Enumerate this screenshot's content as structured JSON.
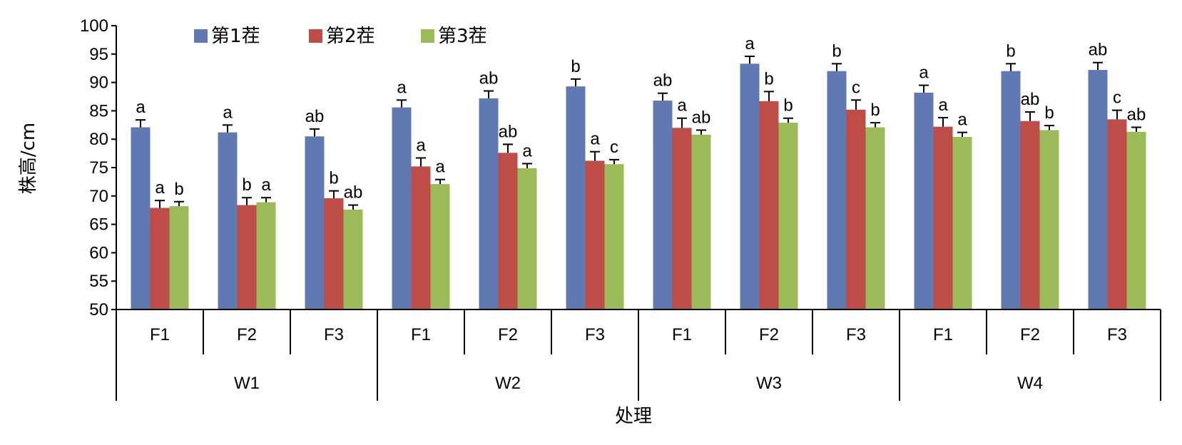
{
  "chart_data": {
    "type": "bar",
    "ylabel": "株高/cm",
    "xlabel": "处理",
    "ylim": [
      50,
      100
    ],
    "yticks": [
      50,
      55,
      60,
      65,
      70,
      75,
      80,
      85,
      90,
      95,
      100
    ],
    "legend_position": "top-left",
    "groups": [
      {
        "label": "W1",
        "categories": [
          "F1",
          "F2",
          "F3"
        ]
      },
      {
        "label": "W2",
        "categories": [
          "F1",
          "F2",
          "F3"
        ]
      },
      {
        "label": "W3",
        "categories": [
          "F1",
          "F2",
          "F3"
        ]
      },
      {
        "label": "W4",
        "categories": [
          "F1",
          "F2",
          "F3"
        ]
      }
    ],
    "series": [
      {
        "name": "第1茬",
        "color": "#6079B2",
        "values": [
          82.1,
          81.2,
          80.5,
          85.6,
          87.2,
          89.3,
          86.8,
          93.3,
          92.0,
          88.2,
          92.0,
          92.2
        ],
        "errors": [
          1.3,
          1.3,
          1.3,
          1.3,
          1.3,
          1.3,
          1.3,
          1.3,
          1.3,
          1.3,
          1.3,
          1.3
        ],
        "sig": [
          "a",
          "a",
          "ab",
          "a",
          "ab",
          "b",
          "ab",
          "a",
          "b",
          "a",
          "b",
          "ab"
        ]
      },
      {
        "name": "第2茬",
        "color": "#BE4D48",
        "values": [
          67.9,
          68.4,
          69.6,
          75.2,
          77.6,
          76.2,
          82.0,
          86.7,
          85.2,
          82.2,
          83.2,
          83.5
        ],
        "errors": [
          1.3,
          1.3,
          1.3,
          1.5,
          1.5,
          1.6,
          1.7,
          1.7,
          1.7,
          1.6,
          1.6,
          1.6
        ],
        "sig": [
          "a",
          "b",
          "b",
          "a",
          "ab",
          "a",
          "a",
          "b",
          "c",
          "a",
          "ab",
          "c"
        ]
      },
      {
        "name": "第3茬",
        "color": "#9BBB59",
        "values": [
          68.2,
          68.9,
          67.6,
          72.1,
          74.9,
          75.6,
          80.8,
          82.9,
          82.1,
          80.4,
          81.6,
          81.3
        ],
        "errors": [
          0.8,
          0.8,
          0.8,
          0.8,
          0.8,
          0.8,
          0.8,
          0.8,
          0.8,
          0.8,
          0.8,
          0.8
        ],
        "sig": [
          "b",
          "a",
          "ab",
          "a",
          "a",
          "c",
          "ab",
          "b",
          "b",
          "a",
          "b",
          "ab"
        ]
      }
    ]
  }
}
